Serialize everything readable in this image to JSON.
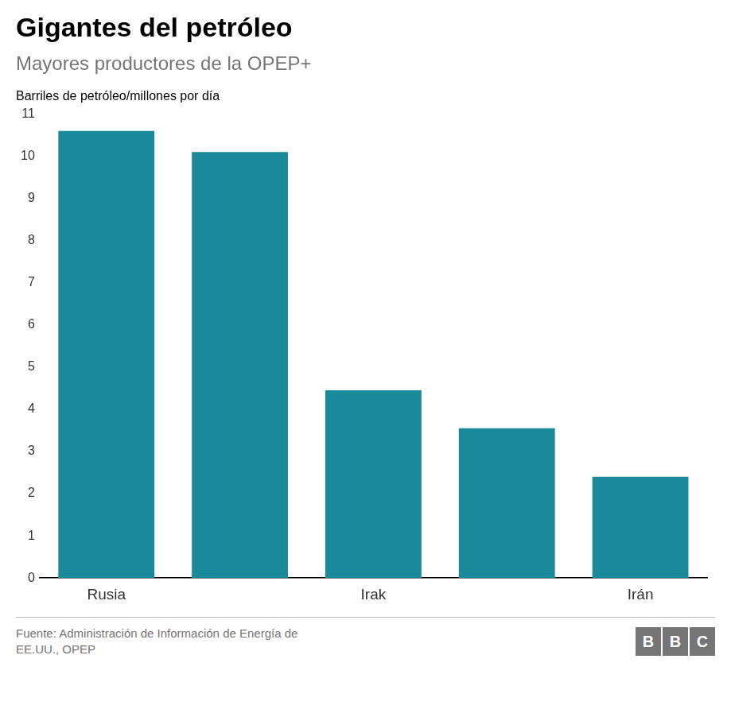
{
  "chart_data": {
    "type": "bar",
    "title": "Gigantes del petróleo",
    "subtitle": "Mayores productores de la OPEP+",
    "ylabel": "Barriles de petróleo/millones por día",
    "categories": [
      "Rusia",
      null,
      "Irak",
      null,
      "Irán"
    ],
    "values": [
      10.6,
      10.1,
      4.45,
      3.55,
      2.4
    ],
    "color": "#1a8a9a",
    "ylim": [
      0,
      11
    ],
    "yticks": [
      0,
      1,
      2,
      3,
      4,
      5,
      6,
      7,
      8,
      9,
      10,
      11
    ],
    "grid": false,
    "source": "Fuente: Administración de Información de Energía de\nEE.UU., OPEP",
    "logo": "BBC"
  }
}
